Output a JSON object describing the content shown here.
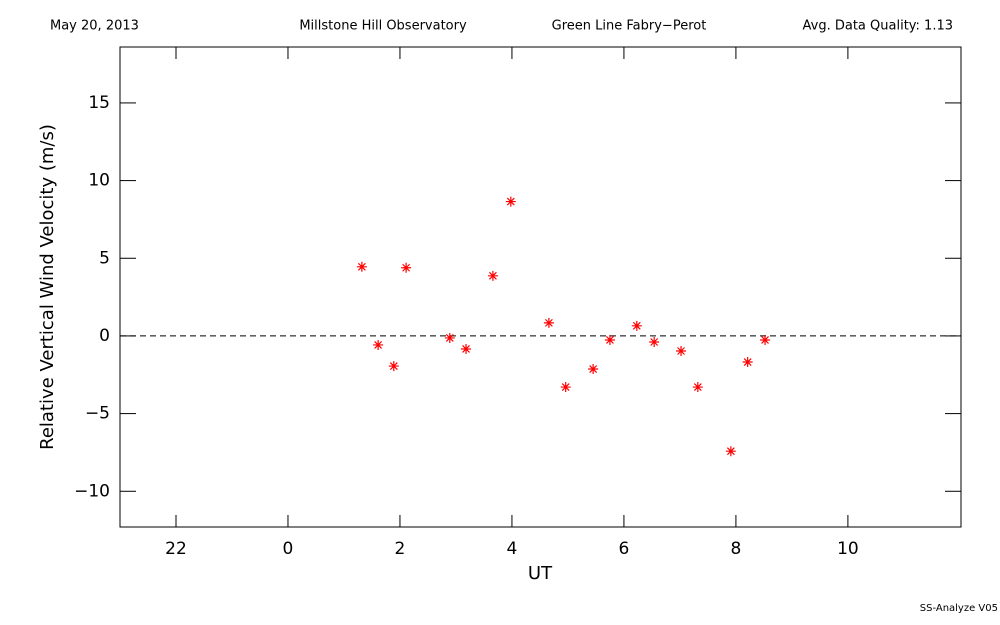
{
  "chart_data": {
    "type": "scatter",
    "header": [
      "May 20, 2013",
      "Millstone Hill Observatory",
      "Green Line Fabry−Perot",
      "Avg. Data Quality: 1.13"
    ],
    "footer": "SS-Analyze V05",
    "xlabel": "UT",
    "ylabel": "Relative Vertical Wind Velocity (m/s)",
    "xlim": [
      -3,
      12.02
    ],
    "ylim": [
      -12.3,
      18.6
    ],
    "xticks": [
      {
        "value": -2,
        "label": "22"
      },
      0,
      2,
      4,
      6,
      8,
      10
    ],
    "yticks": [
      {
        "value": -10,
        "label": "−10"
      },
      {
        "value": -5,
        "label": "−5"
      },
      0,
      5,
      10,
      15
    ],
    "reference_line": 0,
    "color": "#ff0000",
    "x": [
      1.32,
      1.61,
      2.11,
      1.89,
      2.89,
      3.18,
      3.66,
      3.98,
      4.66,
      4.96,
      5.45,
      5.75,
      6.23,
      6.54,
      7.02,
      7.32,
      7.91,
      8.21,
      8.52
    ],
    "values": [
      4.45,
      -0.58,
      4.39,
      -1.94,
      -0.13,
      -0.84,
      3.87,
      8.65,
      0.84,
      -3.29,
      -2.13,
      -0.26,
      0.65,
      -0.39,
      -0.97,
      -3.29,
      -7.42,
      -1.68,
      -0.26
    ]
  }
}
